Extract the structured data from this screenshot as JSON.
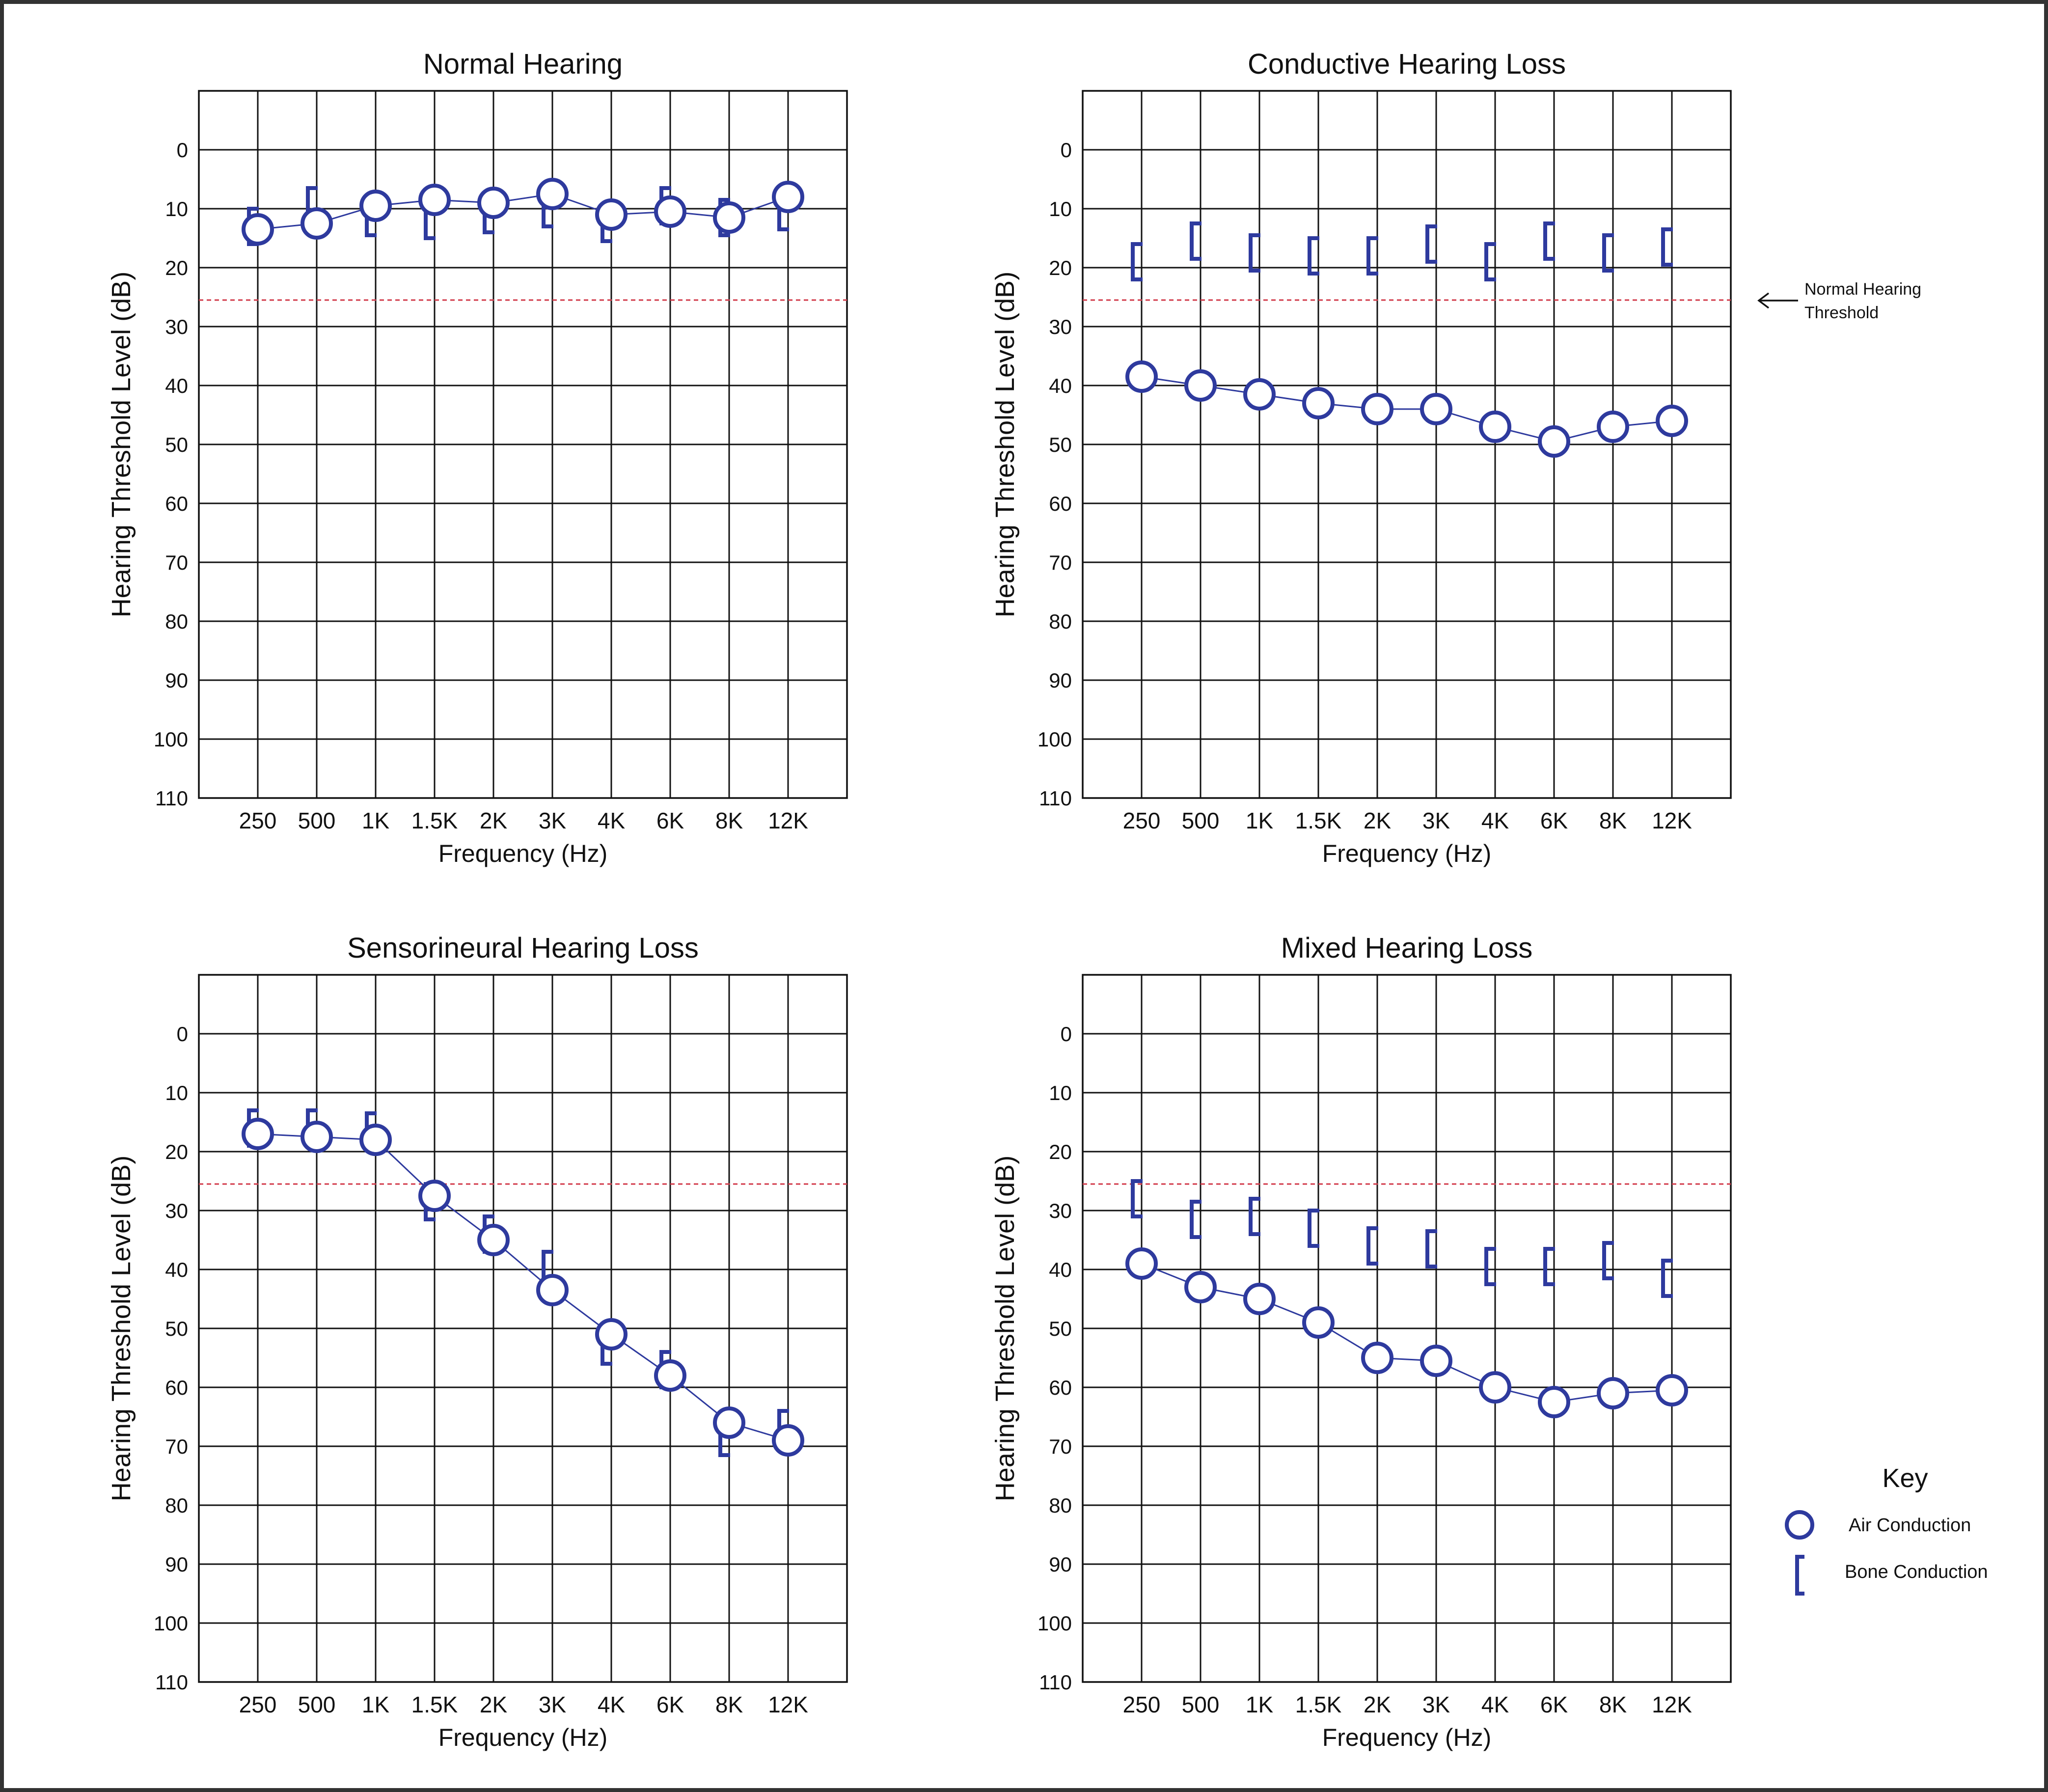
{
  "page": {
    "key_title": "Key",
    "key_air_label": "Air Conduction",
    "key_bone_label": "Bone Conduction",
    "threshold_note_line1": "Normal Hearing",
    "threshold_note_line2": "Threshold"
  },
  "colors": {
    "series": "#2e3a9e",
    "threshold": "#d23a4a",
    "grid": "#111111",
    "frame": "#333333"
  },
  "icons": {
    "air_marker": "open-circle",
    "bone_marker": "left-bracket",
    "note_arrow": "left-arrow"
  },
  "chart_data": [
    {
      "type": "line",
      "title": "Normal Hearing",
      "xlabel": "Frequency (Hz)",
      "ylabel": "Hearing Threshold Level (dB)",
      "categories": [
        "250",
        "500",
        "1K",
        "1.5K",
        "2K",
        "3K",
        "4K",
        "6K",
        "8K",
        "12K"
      ],
      "yticks": [
        "0",
        "10",
        "20",
        "30",
        "40",
        "50",
        "60",
        "70",
        "80",
        "90",
        "100",
        "110"
      ],
      "ylim": [
        -10,
        110
      ],
      "y_inverted": true,
      "grid": true,
      "threshold_db": 25.5,
      "series": [
        {
          "name": "Air Conduction",
          "marker": "circle",
          "connected": true,
          "values": [
            13.5,
            12.5,
            9.5,
            8.5,
            9,
            7.5,
            11,
            10.5,
            11.5,
            8
          ]
        },
        {
          "name": "Bone Conduction",
          "marker": "bracket",
          "connected": false,
          "values": [
            13,
            9.5,
            11.5,
            12,
            11,
            10,
            12.5,
            9.5,
            11.5,
            10.5
          ]
        }
      ]
    },
    {
      "type": "line",
      "title": "Conductive Hearing Loss",
      "xlabel": "Frequency (Hz)",
      "ylabel": "Hearing Threshold Level (dB)",
      "categories": [
        "250",
        "500",
        "1K",
        "1.5K",
        "2K",
        "3K",
        "4K",
        "6K",
        "8K",
        "12K"
      ],
      "yticks": [
        "0",
        "10",
        "20",
        "30",
        "40",
        "50",
        "60",
        "70",
        "80",
        "90",
        "100",
        "110"
      ],
      "ylim": [
        -10,
        110
      ],
      "y_inverted": true,
      "grid": true,
      "threshold_db": 25.5,
      "series": [
        {
          "name": "Air Conduction",
          "marker": "circle",
          "connected": true,
          "values": [
            38.5,
            40,
            41.5,
            43,
            44,
            44,
            47,
            49.5,
            47,
            46
          ]
        },
        {
          "name": "Bone Conduction",
          "marker": "bracket",
          "connected": false,
          "values": [
            19,
            15.5,
            17.5,
            18,
            18,
            16,
            19,
            15.5,
            17.5,
            16.5
          ]
        }
      ]
    },
    {
      "type": "line",
      "title": "Sensorineural Hearing Loss",
      "xlabel": "Frequency (Hz)",
      "ylabel": "Hearing Threshold Level (dB)",
      "categories": [
        "250",
        "500",
        "1K",
        "1.5K",
        "2K",
        "3K",
        "4K",
        "6K",
        "8K",
        "12K"
      ],
      "yticks": [
        "0",
        "10",
        "20",
        "30",
        "40",
        "50",
        "60",
        "70",
        "80",
        "90",
        "100",
        "110"
      ],
      "ylim": [
        -10,
        110
      ],
      "y_inverted": true,
      "grid": true,
      "threshold_db": 25.5,
      "series": [
        {
          "name": "Air Conduction",
          "marker": "circle",
          "connected": true,
          "values": [
            17,
            17.5,
            18,
            27.5,
            35,
            43.5,
            51,
            58,
            66,
            69
          ]
        },
        {
          "name": "Bone Conduction",
          "marker": "bracket",
          "connected": false,
          "values": [
            16,
            16,
            16.5,
            28.5,
            34,
            40,
            53,
            57,
            68.5,
            67
          ]
        }
      ]
    },
    {
      "type": "line",
      "title": "Mixed Hearing Loss",
      "xlabel": "Frequency (Hz)",
      "ylabel": "Hearing Threshold Level (dB)",
      "categories": [
        "250",
        "500",
        "1K",
        "1.5K",
        "2K",
        "3K",
        "4K",
        "6K",
        "8K",
        "12K"
      ],
      "yticks": [
        "0",
        "10",
        "20",
        "30",
        "40",
        "50",
        "60",
        "70",
        "80",
        "90",
        "100",
        "110"
      ],
      "ylim": [
        -10,
        110
      ],
      "y_inverted": true,
      "grid": true,
      "threshold_db": 25.5,
      "series": [
        {
          "name": "Air Conduction",
          "marker": "circle",
          "connected": true,
          "values": [
            39,
            43,
            45,
            49,
            55,
            55.5,
            60,
            62.5,
            61,
            60.5
          ]
        },
        {
          "name": "Bone Conduction",
          "marker": "bracket",
          "connected": false,
          "values": [
            28,
            31.5,
            31,
            33,
            36,
            36.5,
            39.5,
            39.5,
            38.5,
            41.5
          ]
        }
      ]
    }
  ]
}
